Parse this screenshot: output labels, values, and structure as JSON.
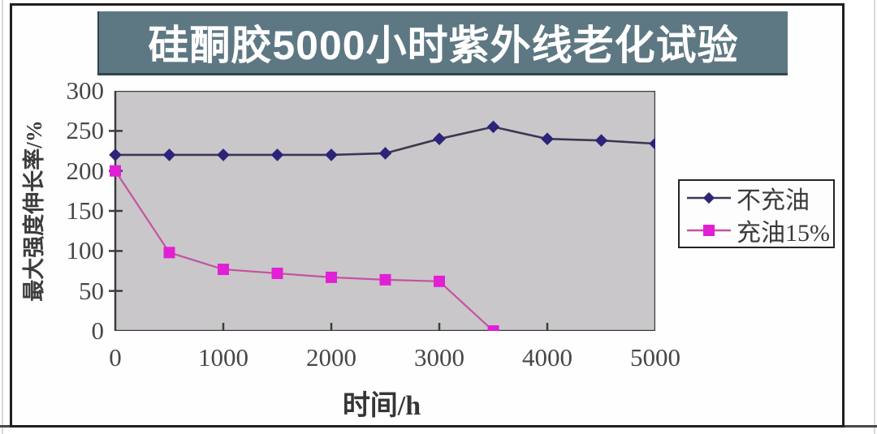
{
  "page": {
    "title": "硅酮胶5000小时紫外线老化试验"
  },
  "chart_data": {
    "type": "line",
    "title": "硅酮胶5000小时紫外线老化试验",
    "xlabel": "时间/h",
    "ylabel": "最大强度伸长率/%",
    "xlim": [
      0,
      5000
    ],
    "ylim": [
      0,
      300
    ],
    "x_ticks": [
      0,
      1000,
      2000,
      3000,
      4000,
      5000
    ],
    "y_ticks": [
      0,
      50,
      100,
      150,
      200,
      250,
      300
    ],
    "grid": false,
    "legend_position": "right",
    "plot_bg_color": "#c9c7ca",
    "axis_color": "#3d3d3d",
    "x": [
      0,
      500,
      1000,
      1500,
      2000,
      2500,
      3000,
      3500,
      4000,
      4500,
      5000
    ],
    "series": [
      {
        "name": "不充油",
        "marker": "diamond",
        "line_color": "#3c3752",
        "marker_color": "#2c2478",
        "values": [
          220,
          220,
          220,
          220,
          220,
          222,
          240,
          255,
          240,
          238,
          234
        ]
      },
      {
        "name": "充油15%",
        "marker": "square",
        "line_color": "#c5539f",
        "marker_color": "#e120d6",
        "values": [
          200,
          98,
          77,
          72,
          67,
          64,
          62,
          0
        ]
      }
    ]
  },
  "colors": {
    "title_bg": "#5d7883",
    "title_text": "#ffffff",
    "frame_border": "#1f1f1f",
    "legend_bg": "#fdfdfd",
    "tick_label": "#474747"
  }
}
